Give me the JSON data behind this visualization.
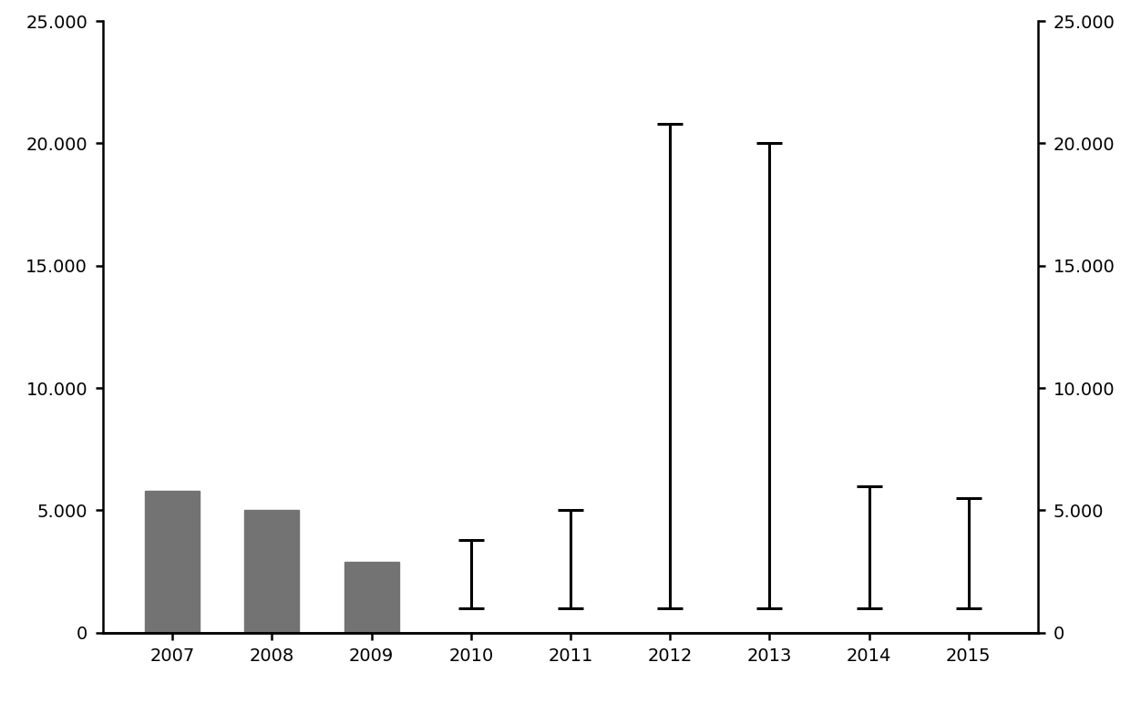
{
  "years": [
    2007,
    2008,
    2009,
    2010,
    2011,
    2012,
    2013,
    2014,
    2015
  ],
  "bar_years": [
    2007,
    2008,
    2009
  ],
  "bar_values": [
    5800,
    5000,
    2900
  ],
  "bar_color": "#737373",
  "errorbar_years": [
    2010,
    2011,
    2012,
    2013,
    2014,
    2015
  ],
  "errorbar_low": [
    1000,
    1000,
    1000,
    1000,
    1000,
    1000
  ],
  "errorbar_high": [
    3800,
    5000,
    20800,
    20000,
    6000,
    5500
  ],
  "ylim": [
    0,
    25000
  ],
  "yticks": [
    0,
    5000,
    10000,
    15000,
    20000,
    25000
  ],
  "ytick_labels": [
    "0",
    "5.000",
    "10.000",
    "15.000",
    "20.000",
    "25.000"
  ],
  "background_color": "#ffffff",
  "bar_width": 0.55,
  "errorbar_linewidth": 2.2,
  "cap_size": 10,
  "cap_thickness": 2.2,
  "xlim_left": 2006.3,
  "xlim_right": 2015.7
}
